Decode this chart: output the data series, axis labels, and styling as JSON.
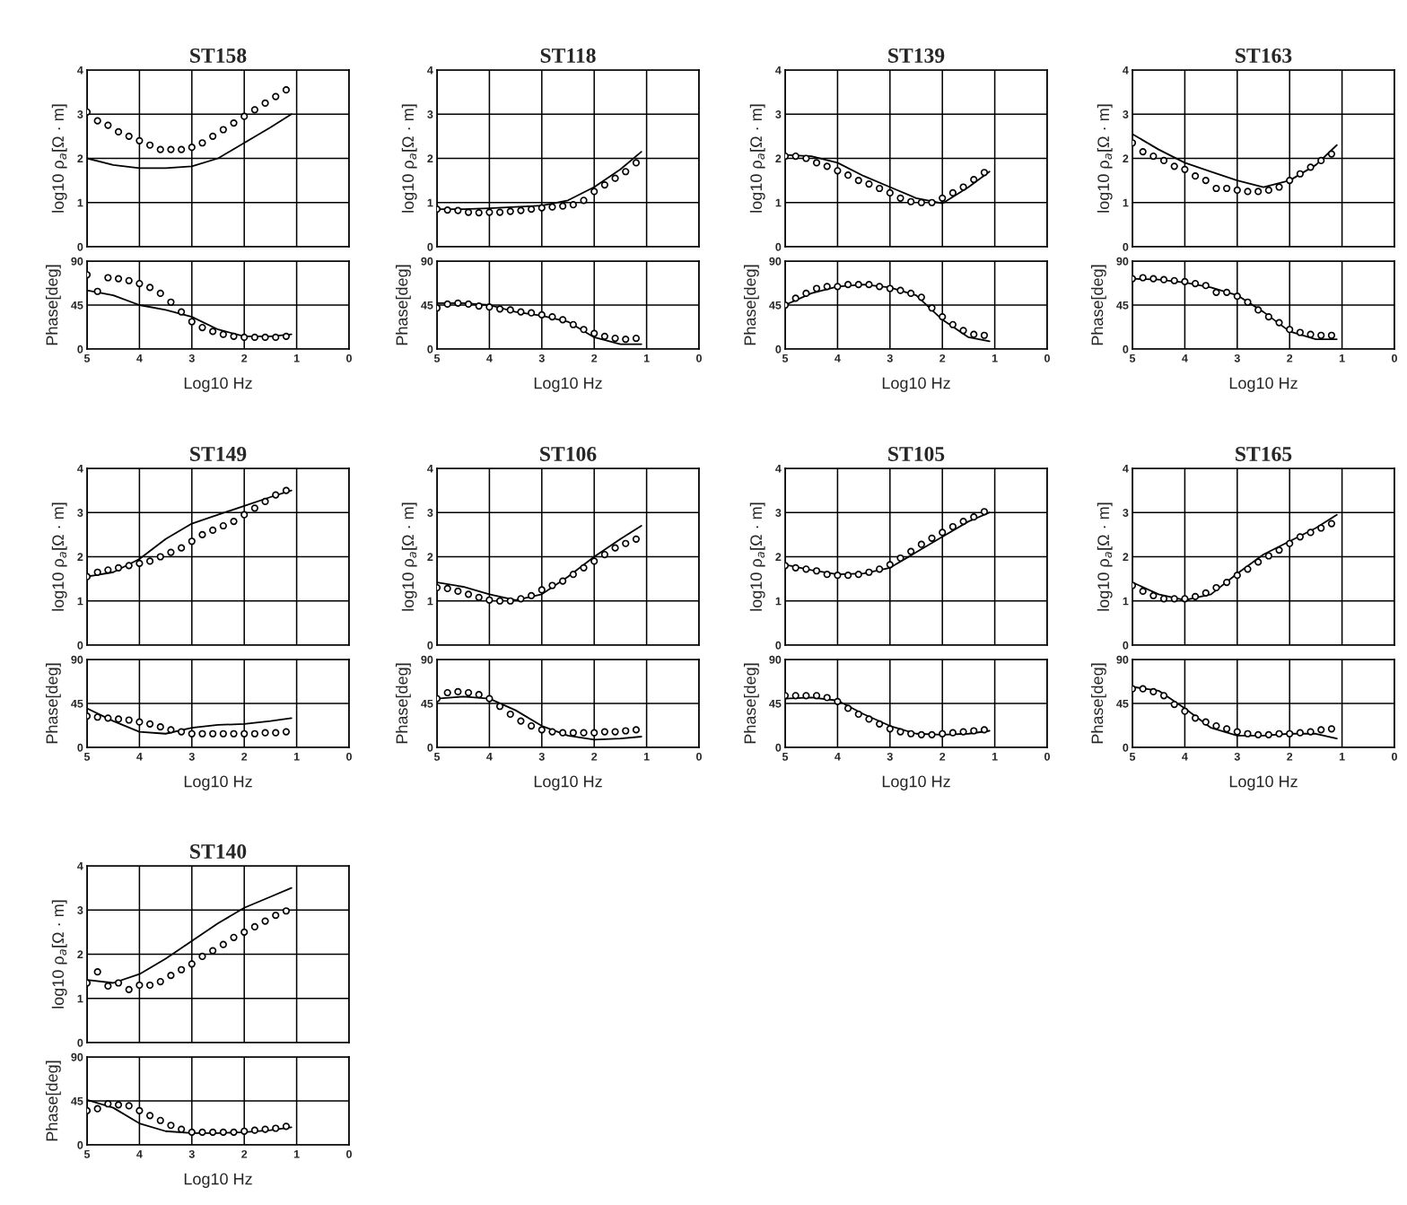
{
  "chart_data": [
    {
      "type": "scatter",
      "title": "ST158",
      "ylabel": "log10 ρ$_{a}$[Ω · m]",
      "xlim": [
        5,
        0
      ],
      "ylim": [
        0,
        4
      ],
      "xticks": [
        5,
        4,
        3,
        2,
        1,
        0
      ],
      "yticks": [
        0,
        1,
        2,
        3,
        4
      ],
      "tick_labels": "y",
      "grid": true,
      "series": [
        {
          "type": "scatter",
          "marker": "circle",
          "color": "#000000",
          "x": [
            5.0,
            4.8,
            4.6,
            4.4,
            4.2,
            4.0,
            3.8,
            3.6,
            3.4,
            3.2,
            3.0,
            2.8,
            2.6,
            2.4,
            2.2,
            2.0,
            1.8,
            1.6,
            1.4,
            1.2
          ],
          "values": [
            3.05,
            2.85,
            2.75,
            2.6,
            2.5,
            2.4,
            2.3,
            2.2,
            2.2,
            2.2,
            2.25,
            2.35,
            2.5,
            2.65,
            2.8,
            2.95,
            3.1,
            3.25,
            3.4,
            3.55
          ]
        },
        {
          "type": "line",
          "color": "#000000",
          "x": [
            5,
            4.5,
            4,
            3.5,
            3,
            2.5,
            2,
            1.5,
            1.1
          ],
          "values": [
            2.0,
            1.85,
            1.78,
            1.78,
            1.82,
            2.0,
            2.35,
            2.7,
            3.0
          ]
        }
      ]
    },
    {
      "type": "scatter",
      "ylabel": "Phase[deg]",
      "xlabel": "Log10 Hz",
      "xlim": [
        5,
        0
      ],
      "ylim": [
        0,
        90
      ],
      "xticks": [
        5,
        4,
        3,
        2,
        1,
        0
      ],
      "yticks": [
        0,
        45,
        90
      ],
      "grid": true,
      "series": [
        {
          "type": "scatter",
          "marker": "circle",
          "color": "#000000",
          "x": [
            5.0,
            4.8,
            4.6,
            4.4,
            4.2,
            4.0,
            3.8,
            3.6,
            3.4,
            3.2,
            3.0,
            2.8,
            2.6,
            2.4,
            2.2,
            2.0,
            1.8,
            1.6,
            1.4,
            1.2
          ],
          "values": [
            76,
            59,
            73,
            72,
            70,
            67,
            63,
            57,
            48,
            38,
            28,
            22,
            18,
            15,
            13,
            12,
            12,
            12,
            12,
            13
          ]
        },
        {
          "type": "line",
          "color": "#000000",
          "x": [
            5,
            4.5,
            4,
            3.5,
            3,
            2.5,
            2,
            1.5,
            1.1
          ],
          "values": [
            60,
            55,
            45,
            40,
            33,
            20,
            13,
            13,
            15
          ]
        }
      ]
    },
    {
      "type": "scatter",
      "title": "ST118",
      "ylabel": "log10 ρ$_{a}$[Ω · m]",
      "xlim": [
        5,
        0
      ],
      "ylim": [
        0,
        4
      ],
      "xticks": [
        5,
        4,
        3,
        2,
        1,
        0
      ],
      "yticks": [
        0,
        1,
        2,
        3,
        4
      ],
      "tick_labels": "y",
      "grid": true,
      "series": [
        {
          "type": "scatter",
          "marker": "circle",
          "color": "#000000",
          "x": [
            5.0,
            4.8,
            4.6,
            4.4,
            4.2,
            4.0,
            3.8,
            3.6,
            3.4,
            3.2,
            3.0,
            2.8,
            2.6,
            2.4,
            2.2,
            2.0,
            1.8,
            1.6,
            1.4,
            1.2
          ],
          "values": [
            0.85,
            0.83,
            0.82,
            0.78,
            0.77,
            0.78,
            0.78,
            0.8,
            0.82,
            0.85,
            0.88,
            0.9,
            0.92,
            0.95,
            1.05,
            1.25,
            1.4,
            1.55,
            1.7,
            1.9
          ]
        },
        {
          "type": "line",
          "color": "#000000",
          "x": [
            5,
            4.5,
            4,
            3.5,
            3,
            2.5,
            2,
            1.5,
            1.1
          ],
          "values": [
            0.85,
            0.85,
            0.87,
            0.9,
            0.93,
            1.05,
            1.35,
            1.75,
            2.15
          ]
        }
      ]
    },
    {
      "type": "scatter",
      "ylabel": "Phase[deg]",
      "xlabel": "Log10 Hz",
      "xlim": [
        5,
        0
      ],
      "ylim": [
        0,
        90
      ],
      "xticks": [
        5,
        4,
        3,
        2,
        1,
        0
      ],
      "yticks": [
        0,
        45,
        90
      ],
      "grid": true,
      "series": [
        {
          "type": "scatter",
          "marker": "circle",
          "color": "#000000",
          "x": [
            5.0,
            4.8,
            4.6,
            4.4,
            4.2,
            4.0,
            3.8,
            3.6,
            3.4,
            3.2,
            3.0,
            2.8,
            2.6,
            2.4,
            2.2,
            2.0,
            1.8,
            1.6,
            1.4,
            1.2
          ],
          "values": [
            42,
            46,
            47,
            46,
            44,
            43,
            41,
            40,
            38,
            37,
            35,
            33,
            30,
            25,
            20,
            16,
            13,
            11,
            10,
            11
          ]
        },
        {
          "type": "line",
          "color": "#000000",
          "x": [
            5,
            4.5,
            4,
            3.5,
            3,
            2.5,
            2,
            1.5,
            1.1
          ],
          "values": [
            47,
            47,
            45,
            38,
            34,
            28,
            12,
            5,
            5
          ]
        }
      ]
    },
    {
      "type": "scatter",
      "title": "ST139",
      "ylabel": "log10 ρ$_{a}$[Ω · m]",
      "xlim": [
        5,
        0
      ],
      "ylim": [
        0,
        4
      ],
      "xticks": [
        5,
        4,
        3,
        2,
        1,
        0
      ],
      "yticks": [
        0,
        1,
        2,
        3,
        4
      ],
      "tick_labels": "y",
      "grid": true,
      "series": [
        {
          "type": "scatter",
          "marker": "circle",
          "color": "#000000",
          "x": [
            5.0,
            4.8,
            4.6,
            4.4,
            4.2,
            4.0,
            3.8,
            3.6,
            3.4,
            3.2,
            3.0,
            2.8,
            2.6,
            2.4,
            2.2,
            2.0,
            1.8,
            1.6,
            1.4,
            1.2
          ],
          "values": [
            2.05,
            2.05,
            2.0,
            1.9,
            1.82,
            1.72,
            1.62,
            1.5,
            1.42,
            1.32,
            1.22,
            1.1,
            1.02,
            1.0,
            1.0,
            1.1,
            1.22,
            1.35,
            1.52,
            1.68
          ]
        },
        {
          "type": "line",
          "color": "#000000",
          "x": [
            5,
            4.5,
            4,
            3.5,
            3,
            2.5,
            2,
            1.5,
            1.1
          ],
          "values": [
            2.08,
            2.05,
            1.9,
            1.6,
            1.35,
            1.1,
            0.98,
            1.35,
            1.7
          ]
        }
      ]
    },
    {
      "type": "scatter",
      "ylabel": "Phase[deg]",
      "xlabel": "Log10 Hz",
      "xlim": [
        5,
        0
      ],
      "ylim": [
        0,
        90
      ],
      "xticks": [
        5,
        4,
        3,
        2,
        1,
        0
      ],
      "yticks": [
        0,
        45,
        90
      ],
      "grid": true,
      "series": [
        {
          "type": "scatter",
          "marker": "circle",
          "color": "#000000",
          "x": [
            5.0,
            4.8,
            4.6,
            4.4,
            4.2,
            4.0,
            3.8,
            3.6,
            3.4,
            3.2,
            3.0,
            2.8,
            2.6,
            2.4,
            2.2,
            2.0,
            1.8,
            1.6,
            1.4,
            1.2
          ],
          "values": [
            45,
            52,
            57,
            62,
            64,
            64,
            66,
            66,
            66,
            64,
            62,
            60,
            57,
            53,
            42,
            33,
            25,
            19,
            15,
            14
          ]
        },
        {
          "type": "line",
          "color": "#000000",
          "x": [
            5,
            4.5,
            4,
            3.5,
            3,
            2.5,
            2,
            1.5,
            1.1
          ],
          "values": [
            45,
            57,
            64,
            66,
            63,
            55,
            30,
            12,
            8
          ]
        }
      ]
    },
    {
      "type": "scatter",
      "title": "ST163",
      "ylabel": "log10 ρ$_{a}$[Ω · m]",
      "xlim": [
        5,
        0
      ],
      "ylim": [
        0,
        4
      ],
      "xticks": [
        5,
        4,
        3,
        2,
        1,
        0
      ],
      "yticks": [
        0,
        1,
        2,
        3,
        4
      ],
      "tick_labels": "y",
      "grid": true,
      "series": [
        {
          "type": "scatter",
          "marker": "circle",
          "color": "#000000",
          "x": [
            5.0,
            4.8,
            4.6,
            4.4,
            4.2,
            4.0,
            3.8,
            3.6,
            3.4,
            3.2,
            3.0,
            2.8,
            2.6,
            2.4,
            2.2,
            2.0,
            1.8,
            1.6,
            1.4,
            1.2
          ],
          "values": [
            2.35,
            2.15,
            2.05,
            1.95,
            1.82,
            1.75,
            1.6,
            1.5,
            1.32,
            1.32,
            1.28,
            1.25,
            1.25,
            1.28,
            1.35,
            1.5,
            1.65,
            1.8,
            1.95,
            2.1
          ]
        },
        {
          "type": "line",
          "color": "#000000",
          "x": [
            5,
            4.5,
            4,
            3.5,
            3,
            2.5,
            2,
            1.5,
            1.1
          ],
          "values": [
            2.55,
            2.2,
            1.9,
            1.7,
            1.5,
            1.35,
            1.5,
            1.85,
            2.3
          ]
        }
      ]
    },
    {
      "type": "scatter",
      "ylabel": "Phase[deg]",
      "xlabel": "Log10 Hz",
      "xlim": [
        5,
        0
      ],
      "ylim": [
        0,
        90
      ],
      "xticks": [
        5,
        4,
        3,
        2,
        1,
        0
      ],
      "yticks": [
        0,
        45,
        90
      ],
      "grid": true,
      "series": [
        {
          "type": "scatter",
          "marker": "circle",
          "color": "#000000",
          "x": [
            5.0,
            4.8,
            4.6,
            4.4,
            4.2,
            4.0,
            3.8,
            3.6,
            3.4,
            3.2,
            3.0,
            2.8,
            2.6,
            2.4,
            2.2,
            2.0,
            1.8,
            1.6,
            1.4,
            1.2
          ],
          "values": [
            72,
            73,
            72,
            71,
            70,
            69,
            67,
            65,
            58,
            58,
            54,
            48,
            40,
            33,
            27,
            20,
            17,
            15,
            14,
            14
          ]
        },
        {
          "type": "line",
          "color": "#000000",
          "x": [
            5,
            4.5,
            4,
            3.5,
            3,
            2.5,
            2,
            1.5,
            1.1
          ],
          "values": [
            72,
            71,
            68,
            63,
            55,
            38,
            18,
            10,
            10
          ]
        }
      ]
    },
    {
      "type": "scatter",
      "title": "ST149",
      "ylabel": "log10 ρ$_{a}$[Ω · m]",
      "xlim": [
        5,
        0
      ],
      "ylim": [
        0,
        4
      ],
      "xticks": [
        5,
        4,
        3,
        2,
        1,
        0
      ],
      "yticks": [
        0,
        1,
        2,
        3,
        4
      ],
      "tick_labels": "y",
      "grid": true,
      "series": [
        {
          "type": "scatter",
          "marker": "circle",
          "color": "#000000",
          "x": [
            5.0,
            4.8,
            4.6,
            4.4,
            4.2,
            4.0,
            3.8,
            3.6,
            3.4,
            3.2,
            3.0,
            2.8,
            2.6,
            2.4,
            2.2,
            2.0,
            1.8,
            1.6,
            1.4,
            1.2
          ],
          "values": [
            1.55,
            1.65,
            1.7,
            1.75,
            1.8,
            1.85,
            1.9,
            2.0,
            2.1,
            2.2,
            2.35,
            2.5,
            2.6,
            2.7,
            2.8,
            2.95,
            3.1,
            3.25,
            3.4,
            3.5
          ]
        },
        {
          "type": "line",
          "color": "#000000",
          "x": [
            5,
            4.5,
            4,
            3.5,
            3,
            2.5,
            2,
            1.5,
            1.1
          ],
          "values": [
            1.55,
            1.65,
            1.95,
            2.4,
            2.75,
            2.95,
            3.15,
            3.35,
            3.5
          ]
        }
      ]
    },
    {
      "type": "scatter",
      "ylabel": "Phase[deg]",
      "xlabel": "Log10 Hz",
      "xlim": [
        5,
        0
      ],
      "ylim": [
        0,
        90
      ],
      "xticks": [
        5,
        4,
        3,
        2,
        1,
        0
      ],
      "yticks": [
        0,
        45,
        90
      ],
      "grid": true,
      "series": [
        {
          "type": "scatter",
          "marker": "circle",
          "color": "#000000",
          "x": [
            5.0,
            4.8,
            4.6,
            4.4,
            4.2,
            4.0,
            3.8,
            3.6,
            3.4,
            3.2,
            3.0,
            2.8,
            2.6,
            2.4,
            2.2,
            2.0,
            1.8,
            1.6,
            1.4,
            1.2
          ],
          "values": [
            32,
            31,
            30,
            29,
            28,
            26,
            24,
            21,
            18,
            16,
            14,
            14,
            14,
            14,
            14,
            14,
            14,
            15,
            15,
            16
          ]
        },
        {
          "type": "line",
          "color": "#000000",
          "x": [
            5,
            4.5,
            4,
            3.5,
            3,
            2.5,
            2,
            1.5,
            1.1
          ],
          "values": [
            40,
            27,
            16,
            14,
            20,
            23,
            24,
            27,
            30
          ]
        }
      ]
    },
    {
      "type": "scatter",
      "title": "ST106",
      "ylabel": "log10 ρ$_{a}$[Ω · m]",
      "xlim": [
        5,
        0
      ],
      "ylim": [
        0,
        4
      ],
      "xticks": [
        5,
        4,
        3,
        2,
        1,
        0
      ],
      "yticks": [
        0,
        1,
        2,
        3,
        4
      ],
      "tick_labels": "y",
      "grid": true,
      "series": [
        {
          "type": "scatter",
          "marker": "circle",
          "color": "#000000",
          "x": [
            5.0,
            4.8,
            4.6,
            4.4,
            4.2,
            4.0,
            3.8,
            3.6,
            3.4,
            3.2,
            3.0,
            2.8,
            2.6,
            2.4,
            2.2,
            2.0,
            1.8,
            1.6,
            1.4,
            1.2
          ],
          "values": [
            1.3,
            1.28,
            1.22,
            1.15,
            1.08,
            1.02,
            1.0,
            1.0,
            1.05,
            1.12,
            1.25,
            1.35,
            1.45,
            1.6,
            1.75,
            1.9,
            2.05,
            2.2,
            2.3,
            2.4
          ]
        },
        {
          "type": "line",
          "color": "#000000",
          "x": [
            5,
            4.5,
            4,
            3.5,
            3,
            2.5,
            2,
            1.5,
            1.1
          ],
          "values": [
            1.42,
            1.32,
            1.15,
            1.02,
            1.15,
            1.55,
            2.0,
            2.4,
            2.7
          ]
        }
      ]
    },
    {
      "type": "scatter",
      "ylabel": "Phase[deg]",
      "xlabel": "Log10 Hz",
      "xlim": [
        5,
        0
      ],
      "ylim": [
        0,
        90
      ],
      "xticks": [
        5,
        4,
        3,
        2,
        1,
        0
      ],
      "yticks": [
        0,
        45,
        90
      ],
      "grid": true,
      "series": [
        {
          "type": "scatter",
          "marker": "circle",
          "color": "#000000",
          "x": [
            5.0,
            4.8,
            4.6,
            4.4,
            4.2,
            4.0,
            3.8,
            3.6,
            3.4,
            3.2,
            3.0,
            2.8,
            2.6,
            2.4,
            2.2,
            2.0,
            1.8,
            1.6,
            1.4,
            1.2
          ],
          "values": [
            50,
            56,
            57,
            56,
            54,
            50,
            42,
            34,
            27,
            22,
            18,
            16,
            15,
            15,
            15,
            15,
            16,
            16,
            17,
            18
          ]
        },
        {
          "type": "line",
          "color": "#000000",
          "x": [
            5,
            4.5,
            4,
            3.5,
            3,
            2.5,
            2,
            1.5,
            1.1
          ],
          "values": [
            50,
            52,
            50,
            38,
            22,
            12,
            8,
            9,
            11
          ]
        }
      ]
    },
    {
      "type": "scatter",
      "title": "ST105",
      "ylabel": "log10 ρ$_{a}$[Ω · m]",
      "xlim": [
        5,
        0
      ],
      "ylim": [
        0,
        4
      ],
      "xticks": [
        5,
        4,
        3,
        2,
        1,
        0
      ],
      "yticks": [
        0,
        1,
        2,
        3,
        4
      ],
      "tick_labels": "y",
      "grid": true,
      "series": [
        {
          "type": "scatter",
          "marker": "circle",
          "color": "#000000",
          "x": [
            5.0,
            4.8,
            4.6,
            4.4,
            4.2,
            4.0,
            3.8,
            3.6,
            3.4,
            3.2,
            3.0,
            2.8,
            2.6,
            2.4,
            2.2,
            2.0,
            1.8,
            1.6,
            1.4,
            1.2
          ],
          "values": [
            1.8,
            1.75,
            1.72,
            1.68,
            1.6,
            1.58,
            1.58,
            1.6,
            1.65,
            1.72,
            1.82,
            1.97,
            2.12,
            2.28,
            2.42,
            2.55,
            2.68,
            2.8,
            2.9,
            3.02
          ]
        },
        {
          "type": "line",
          "color": "#000000",
          "x": [
            5,
            4.5,
            4,
            3.5,
            3,
            2.5,
            2,
            1.5,
            1.1
          ],
          "values": [
            1.82,
            1.7,
            1.6,
            1.62,
            1.75,
            2.1,
            2.45,
            2.8,
            3.0
          ]
        }
      ]
    },
    {
      "type": "scatter",
      "ylabel": "Phase[deg]",
      "xlabel": "Log10 Hz",
      "xlim": [
        5,
        0
      ],
      "ylim": [
        0,
        90
      ],
      "xticks": [
        5,
        4,
        3,
        2,
        1,
        0
      ],
      "yticks": [
        0,
        45,
        90
      ],
      "grid": true,
      "series": [
        {
          "type": "scatter",
          "marker": "circle",
          "color": "#000000",
          "x": [
            5.0,
            4.8,
            4.6,
            4.4,
            4.2,
            4.0,
            3.8,
            3.6,
            3.4,
            3.2,
            3.0,
            2.8,
            2.6,
            2.4,
            2.2,
            2.0,
            1.8,
            1.6,
            1.4,
            1.2
          ],
          "values": [
            53,
            53,
            53,
            53,
            51,
            47,
            40,
            34,
            29,
            24,
            19,
            16,
            14,
            13,
            13,
            14,
            15,
            16,
            17,
            18
          ]
        },
        {
          "type": "line",
          "color": "#000000",
          "x": [
            5,
            4.5,
            4,
            3.5,
            3,
            2.5,
            2,
            1.5,
            1.1
          ],
          "values": [
            50,
            51,
            48,
            34,
            22,
            14,
            13,
            14,
            17
          ]
        }
      ]
    },
    {
      "type": "scatter",
      "title": "ST165",
      "ylabel": "log10 ρ$_{a}$[Ω · m]",
      "xlim": [
        5,
        0
      ],
      "ylim": [
        0,
        4
      ],
      "xticks": [
        5,
        4,
        3,
        2,
        1,
        0
      ],
      "yticks": [
        0,
        1,
        2,
        3,
        4
      ],
      "tick_labels": "y",
      "grid": true,
      "series": [
        {
          "type": "scatter",
          "marker": "circle",
          "color": "#000000",
          "x": [
            5.0,
            4.8,
            4.6,
            4.4,
            4.2,
            4.0,
            3.8,
            3.6,
            3.4,
            3.2,
            3.0,
            2.8,
            2.6,
            2.4,
            2.2,
            2.0,
            1.8,
            1.6,
            1.4,
            1.2
          ],
          "values": [
            1.35,
            1.22,
            1.12,
            1.05,
            1.05,
            1.05,
            1.1,
            1.18,
            1.3,
            1.42,
            1.58,
            1.72,
            1.88,
            2.02,
            2.15,
            2.3,
            2.45,
            2.55,
            2.65,
            2.75
          ]
        },
        {
          "type": "line",
          "color": "#000000",
          "x": [
            5,
            4.5,
            4,
            3.5,
            3,
            2.5,
            2,
            1.5,
            1.1
          ],
          "values": [
            1.42,
            1.15,
            1.02,
            1.15,
            1.62,
            2.05,
            2.35,
            2.65,
            2.95
          ]
        }
      ]
    },
    {
      "type": "scatter",
      "ylabel": "Phase[deg]",
      "xlabel": "Log10 Hz",
      "xlim": [
        5,
        0
      ],
      "ylim": [
        0,
        90
      ],
      "xticks": [
        5,
        4,
        3,
        2,
        1,
        0
      ],
      "yticks": [
        0,
        45,
        90
      ],
      "grid": true,
      "series": [
        {
          "type": "scatter",
          "marker": "circle",
          "color": "#000000",
          "x": [
            5.0,
            4.8,
            4.6,
            4.4,
            4.2,
            4.0,
            3.8,
            3.6,
            3.4,
            3.2,
            3.0,
            2.8,
            2.6,
            2.4,
            2.2,
            2.0,
            1.8,
            1.6,
            1.4,
            1.2
          ],
          "values": [
            60,
            60,
            57,
            53,
            44,
            37,
            30,
            26,
            22,
            19,
            16,
            14,
            13,
            13,
            14,
            14,
            15,
            16,
            18,
            19
          ]
        },
        {
          "type": "line",
          "color": "#000000",
          "x": [
            5,
            4.5,
            4,
            3.5,
            3,
            2.5,
            2,
            1.5,
            1.1
          ],
          "values": [
            62,
            58,
            40,
            20,
            12,
            12,
            14,
            14,
            9
          ]
        }
      ]
    },
    {
      "type": "scatter",
      "title": "ST140",
      "ylabel": "log10 ρ$_{a}$[Ω · m]",
      "xlim": [
        5,
        0
      ],
      "ylim": [
        0,
        4
      ],
      "xticks": [
        5,
        4,
        3,
        2,
        1,
        0
      ],
      "yticks": [
        0,
        1,
        2,
        3,
        4
      ],
      "tick_labels": "y",
      "grid": true,
      "series": [
        {
          "type": "scatter",
          "marker": "circle",
          "color": "#000000",
          "x": [
            5.0,
            4.8,
            4.6,
            4.4,
            4.2,
            4.0,
            3.8,
            3.6,
            3.4,
            3.2,
            3.0,
            2.8,
            2.6,
            2.4,
            2.2,
            2.0,
            1.8,
            1.6,
            1.4,
            1.2
          ],
          "values": [
            1.35,
            1.6,
            1.28,
            1.35,
            1.2,
            1.3,
            1.3,
            1.38,
            1.52,
            1.65,
            1.78,
            1.95,
            2.08,
            2.22,
            2.38,
            2.5,
            2.62,
            2.75,
            2.88,
            2.98
          ]
        },
        {
          "type": "line",
          "color": "#000000",
          "x": [
            5,
            4.5,
            4,
            3.5,
            3,
            2.5,
            2,
            1.5,
            1.1
          ],
          "values": [
            1.42,
            1.35,
            1.55,
            1.9,
            2.3,
            2.7,
            3.05,
            3.3,
            3.5
          ]
        }
      ]
    },
    {
      "type": "scatter",
      "ylabel": "Phase[deg]",
      "xlabel": "Log10 Hz",
      "xlim": [
        5,
        0
      ],
      "ylim": [
        0,
        90
      ],
      "xticks": [
        5,
        4,
        3,
        2,
        1,
        0
      ],
      "yticks": [
        0,
        45,
        90
      ],
      "grid": true,
      "series": [
        {
          "type": "scatter",
          "marker": "circle",
          "color": "#000000",
          "x": [
            5.0,
            4.8,
            4.6,
            4.4,
            4.2,
            4.0,
            3.8,
            3.6,
            3.4,
            3.2,
            3.0,
            2.8,
            2.6,
            2.4,
            2.2,
            2.0,
            1.8,
            1.6,
            1.4,
            1.2
          ],
          "values": [
            35,
            37,
            42,
            41,
            40,
            35,
            30,
            25,
            20,
            16,
            13,
            13,
            13,
            13,
            13,
            14,
            15,
            16,
            17,
            19
          ]
        },
        {
          "type": "line",
          "color": "#000000",
          "x": [
            5,
            4.5,
            4,
            3.5,
            3,
            2.5,
            2,
            1.5,
            1.1
          ],
          "values": [
            46,
            38,
            22,
            14,
            12,
            12,
            13,
            15,
            18
          ]
        }
      ]
    }
  ]
}
